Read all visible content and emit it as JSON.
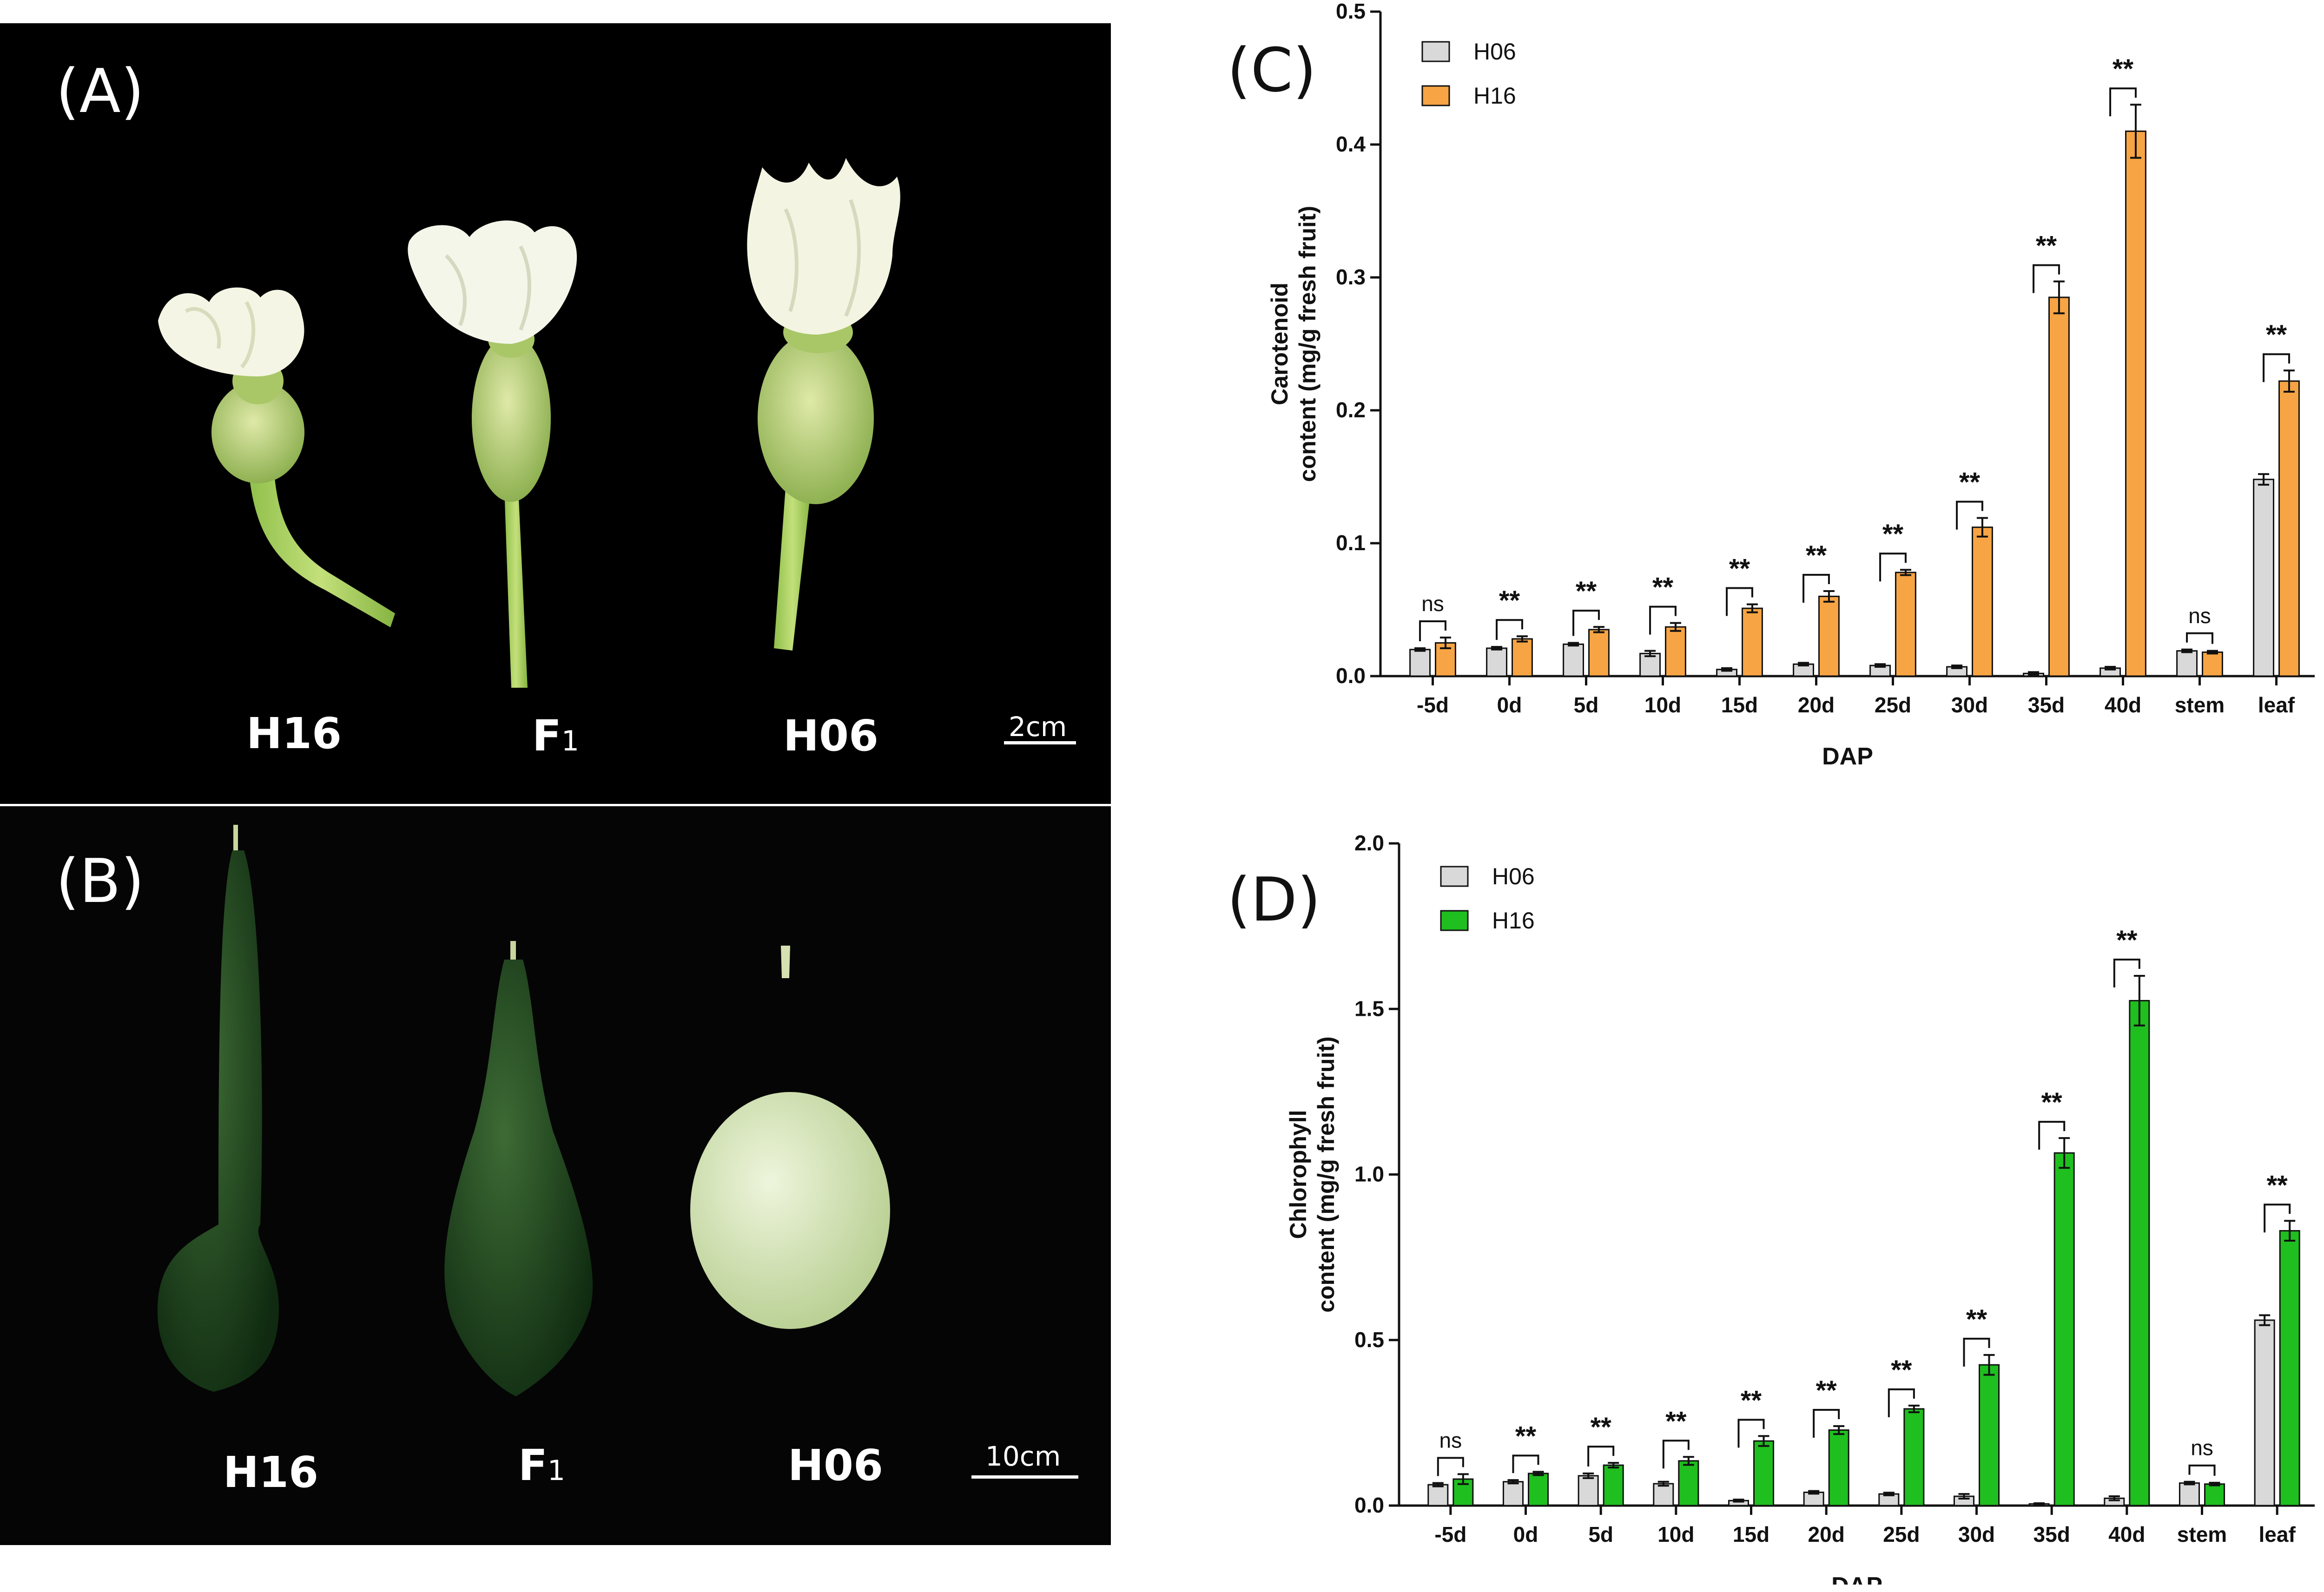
{
  "photos": {
    "A": {
      "letter": "(A)",
      "labels": [
        "H16",
        "F",
        "H06"
      ],
      "f1_subscript": "1",
      "scale": "2cm"
    },
    "B": {
      "letter": "(B)",
      "labels": [
        "H16",
        "F",
        "H06"
      ],
      "f1_subscript": "1",
      "scale": "10cm"
    }
  },
  "colors": {
    "h06": "#d9d9d9",
    "h16_carotenoid": "#f7a444",
    "h16_chlorophyll": "#1fbf1f"
  },
  "chart_data": [
    {
      "panel": "(C)",
      "type": "bar",
      "categories": [
        "-5d",
        "0d",
        "5d",
        "10d",
        "15d",
        "20d",
        "25d",
        "30d",
        "35d",
        "40d",
        "stem",
        "leaf"
      ],
      "series": [
        {
          "name": "H06",
          "values": [
            0.02,
            0.021,
            0.024,
            0.017,
            0.005,
            0.009,
            0.008,
            0.007,
            0.002,
            0.006,
            0.019,
            0.148
          ],
          "errors": [
            0.001,
            0.001,
            0.001,
            0.002,
            0.001,
            0.001,
            0.001,
            0.001,
            0.001,
            0.001,
            0.001,
            0.004
          ]
        },
        {
          "name": "H16",
          "values": [
            0.025,
            0.028,
            0.035,
            0.037,
            0.051,
            0.06,
            0.078,
            0.112,
            0.285,
            0.41,
            0.018,
            0.222
          ],
          "errors": [
            0.004,
            0.002,
            0.002,
            0.003,
            0.003,
            0.004,
            0.002,
            0.007,
            0.012,
            0.02,
            0.001,
            0.008
          ]
        }
      ],
      "significance": [
        "ns",
        "**",
        "**",
        "**",
        "**",
        "**",
        "**",
        "**",
        "**",
        "**",
        "ns",
        "**"
      ],
      "yticks": [
        "0.0",
        "0.1",
        "0.2",
        "0.3",
        "0.4",
        "0.5"
      ],
      "ylim": [
        0,
        0.5
      ],
      "ylabel_line1": "Carotenoid",
      "ylabel_line2": "content (mg/g fresh fruit)",
      "xlabel": "DAP",
      "legend_placement": "top-left"
    },
    {
      "panel": "(D)",
      "type": "bar",
      "categories": [
        "-5d",
        "0d",
        "5d",
        "10d",
        "15d",
        "20d",
        "25d",
        "30d",
        "35d",
        "40d",
        "stem",
        "leaf"
      ],
      "series": [
        {
          "name": "H06",
          "values": [
            0.063,
            0.072,
            0.09,
            0.066,
            0.015,
            0.04,
            0.035,
            0.028,
            0.005,
            0.022,
            0.068,
            0.56
          ],
          "errors": [
            0.005,
            0.005,
            0.007,
            0.006,
            0.003,
            0.004,
            0.004,
            0.007,
            0.002,
            0.006,
            0.004,
            0.015
          ]
        },
        {
          "name": "H16",
          "values": [
            0.08,
            0.097,
            0.122,
            0.135,
            0.195,
            0.228,
            0.292,
            0.425,
            1.065,
            1.525,
            0.065,
            0.83
          ],
          "errors": [
            0.015,
            0.005,
            0.007,
            0.012,
            0.015,
            0.012,
            0.01,
            0.03,
            0.045,
            0.075,
            0.004,
            0.03
          ]
        }
      ],
      "significance": [
        "ns",
        "**",
        "**",
        "**",
        "**",
        "**",
        "**",
        "**",
        "**",
        "**",
        "ns",
        "**"
      ],
      "yticks": [
        "0.0",
        "0.5",
        "1.0",
        "1.5",
        "2.0"
      ],
      "ylim": [
        0,
        2.0
      ],
      "ylabel_line1": "Chlorophyll",
      "ylabel_line2": "content (mg/g fresh fruit)",
      "xlabel": "DAP",
      "legend_placement": "top-left"
    }
  ]
}
